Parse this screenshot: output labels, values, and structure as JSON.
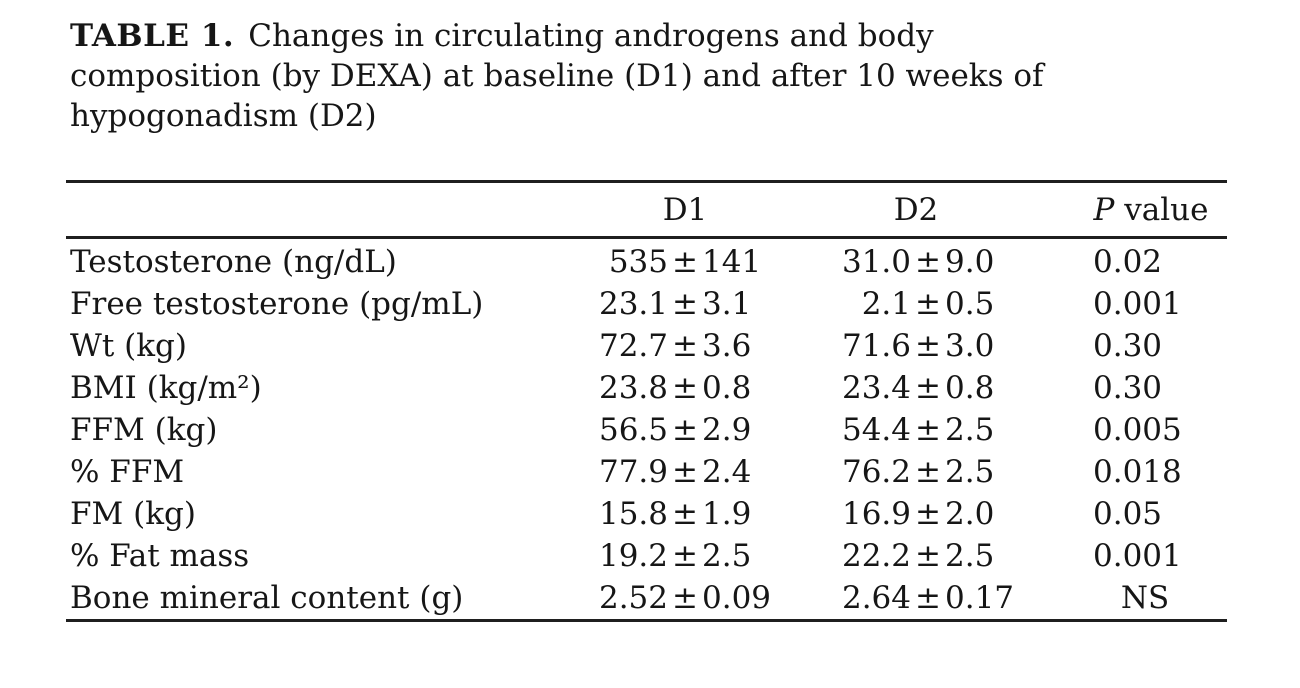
{
  "caption": {
    "label": "TABLE 1.",
    "line1": "Changes in circulating androgens and body",
    "line2": "composition (by DEXA) at baseline (D1) and after 10 weeks of",
    "line3": "hypogonadism (D2)",
    "full_text": "TABLE 1. Changes in circulating androgens and body composition (by DEXA) at baseline (D1) and after 10 weeks of hypogonadism (D2)"
  },
  "table": {
    "header": {
      "label_col": "",
      "d1": "D1",
      "d2": "D2",
      "p_italic": "P",
      "p_rest": " value"
    },
    "rows": [
      {
        "label": "Testosterone (ng/dL)",
        "d1": "535 ± 141",
        "d2": "31.0 ± 9.0",
        "p": "0.02"
      },
      {
        "label": "Free testosterone (pg/mL)",
        "d1": "23.1 ± 3.1",
        "d2": "2.1 ± 0.5",
        "p": "0.001"
      },
      {
        "label": "Wt (kg)",
        "d1": "72.7 ± 3.6",
        "d2": "71.6 ± 3.0",
        "p": "0.30"
      },
      {
        "label": "BMI (kg/m²)",
        "d1": "23.8 ± 0.8",
        "d2": "23.4 ± 0.8",
        "p": "0.30"
      },
      {
        "label": "FFM (kg)",
        "d1": "56.5 ± 2.9",
        "d2": "54.4 ± 2.5",
        "p": "0.005"
      },
      {
        "label": "% FFM",
        "d1": "77.9 ± 2.4",
        "d2": "76.2 ± 2.5",
        "p": "0.018"
      },
      {
        "label": "FM (kg)",
        "d1": "15.8 ± 1.9",
        "d2": "16.9 ± 2.0",
        "p": "0.05"
      },
      {
        "label": "% Fat mass",
        "d1": "19.2 ± 2.5",
        "d2": "22.2 ± 2.5",
        "p": "0.001"
      },
      {
        "label": "Bone mineral content (g)",
        "d1": "2.52 ± 0.09",
        "d2": "2.64 ± 0.17",
        "p": "NS"
      }
    ]
  },
  "colors": {
    "text": "#161616",
    "rule": "#1f1f1f",
    "background": "#ffffff"
  }
}
